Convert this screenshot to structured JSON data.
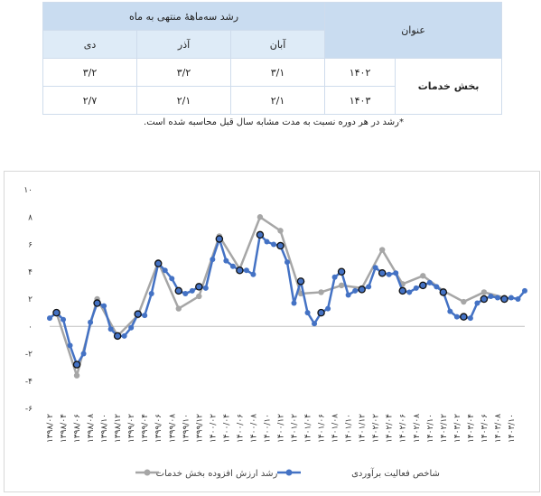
{
  "table": {
    "header_group": "رشد سه‌ماههٔ منتهی به ماه",
    "header_title": "عنوان",
    "months": [
      "آبان",
      "آذر",
      "دی"
    ],
    "row_label": "بخش خدمات",
    "rows": [
      {
        "year": "۱۴۰۲",
        "values": [
          "۳/۱",
          "۳/۲",
          "۳/۲"
        ]
      },
      {
        "year": "۱۴۰۳",
        "values": [
          "۲/۱",
          "۲/۱",
          "۲/۷"
        ]
      }
    ]
  },
  "note": "*رشد در هر دوره نسبت به مدت مشابه سال قبل محاسبه شده است.",
  "chart_data": {
    "type": "line",
    "ylim": [
      -6,
      10
    ],
    "yticks": [
      "۱۰",
      "۸",
      "۶",
      "۴",
      "۲",
      "۰",
      "-۲",
      "-۴",
      "-۶"
    ],
    "xticks": [
      "۱۳۹۸/۰۲",
      "۱۳۹۸/۰۴",
      "۱۳۹۸/۰۶",
      "۱۳۹۸/۰۸",
      "۱۳۹۸/۱۰",
      "۱۳۹۸/۱۲",
      "۱۳۹۹/۰۲",
      "۱۳۹۹/۰۴",
      "۱۳۹۹/۰۶",
      "۱۳۹۹/۰۸",
      "۱۳۹۹/۱۰",
      "۱۳۹۹/۱۲",
      "۱۴۰۰/۰۲",
      "۱۴۰۰/۰۴",
      "۱۴۰۰/۰۶",
      "۱۴۰۰/۰۸",
      "۱۴۰۰/۱۰",
      "۱۴۰۰/۱۲",
      "۱۴۰۱/۰۲",
      "۱۴۰۱/۰۴",
      "۱۴۰۱/۰۶",
      "۱۴۰۱/۰۸",
      "۱۴۰۱/۱۰",
      "۱۴۰۱/۱۲",
      "۱۴۰۲/۰۲",
      "۱۴۰۲/۰۴",
      "۱۴۰۲/۰۶",
      "۱۴۰۲/۰۸",
      "۱۴۰۲/۱۰",
      "۱۴۰۲/۱۲",
      "۱۴۰۳/۰۲",
      "۱۴۰۳/۰۴",
      "۱۴۰۳/۰۶",
      "۱۴۰۳/۰۸",
      "۱۴۰۳/۱۰"
    ],
    "series": [
      {
        "name": "رشد ارزش افزوده بخش خدمات",
        "color": "#a6a6a6",
        "x": [
          1,
          4,
          7,
          10,
          13,
          16,
          19,
          22,
          25,
          28,
          31,
          34,
          37,
          40,
          43,
          46,
          49,
          52,
          55,
          58,
          61,
          64,
          67
        ],
        "values": [
          1.0,
          -3.6,
          2.0,
          -0.7,
          0.8,
          4.7,
          1.3,
          2.2,
          6.6,
          4.2,
          8.0,
          7.0,
          2.4,
          2.5,
          3.0,
          2.8,
          5.6,
          3.1,
          3.7,
          2.6,
          1.8,
          2.5,
          2.1
        ]
      },
      {
        "name": "شاخص فعالیت برآوردی",
        "color": "#4472c4",
        "values": [
          0.6,
          1.0,
          0.5,
          -1.4,
          -2.8,
          -2.0,
          0.3,
          1.7,
          1.5,
          -0.2,
          -0.7,
          -0.7,
          -0.1,
          0.9,
          0.8,
          2.4,
          4.6,
          4.1,
          3.5,
          2.6,
          2.4,
          2.6,
          2.9,
          2.8,
          4.9,
          6.4,
          4.8,
          4.4,
          4.1,
          4.1,
          3.8,
          6.7,
          6.2,
          6.0,
          5.9,
          4.7,
          1.7,
          3.3,
          1.0,
          0.2,
          1.0,
          1.3,
          3.6,
          4.0,
          2.3,
          2.6,
          2.7,
          2.9,
          4.3,
          3.9,
          3.8,
          3.9,
          2.6,
          2.5,
          2.8,
          3.0,
          3.2,
          2.9,
          2.5,
          1.1,
          0.7,
          0.7,
          0.6,
          1.7,
          2.0,
          2.2,
          2.1,
          2.0,
          2.1,
          2.0,
          2.6
        ],
        "markers": [
          1,
          4,
          7,
          10,
          13,
          16,
          19,
          22,
          25,
          28,
          31,
          34,
          37,
          40,
          43,
          46,
          49,
          52,
          55,
          58,
          61,
          64,
          67
        ]
      }
    ]
  }
}
